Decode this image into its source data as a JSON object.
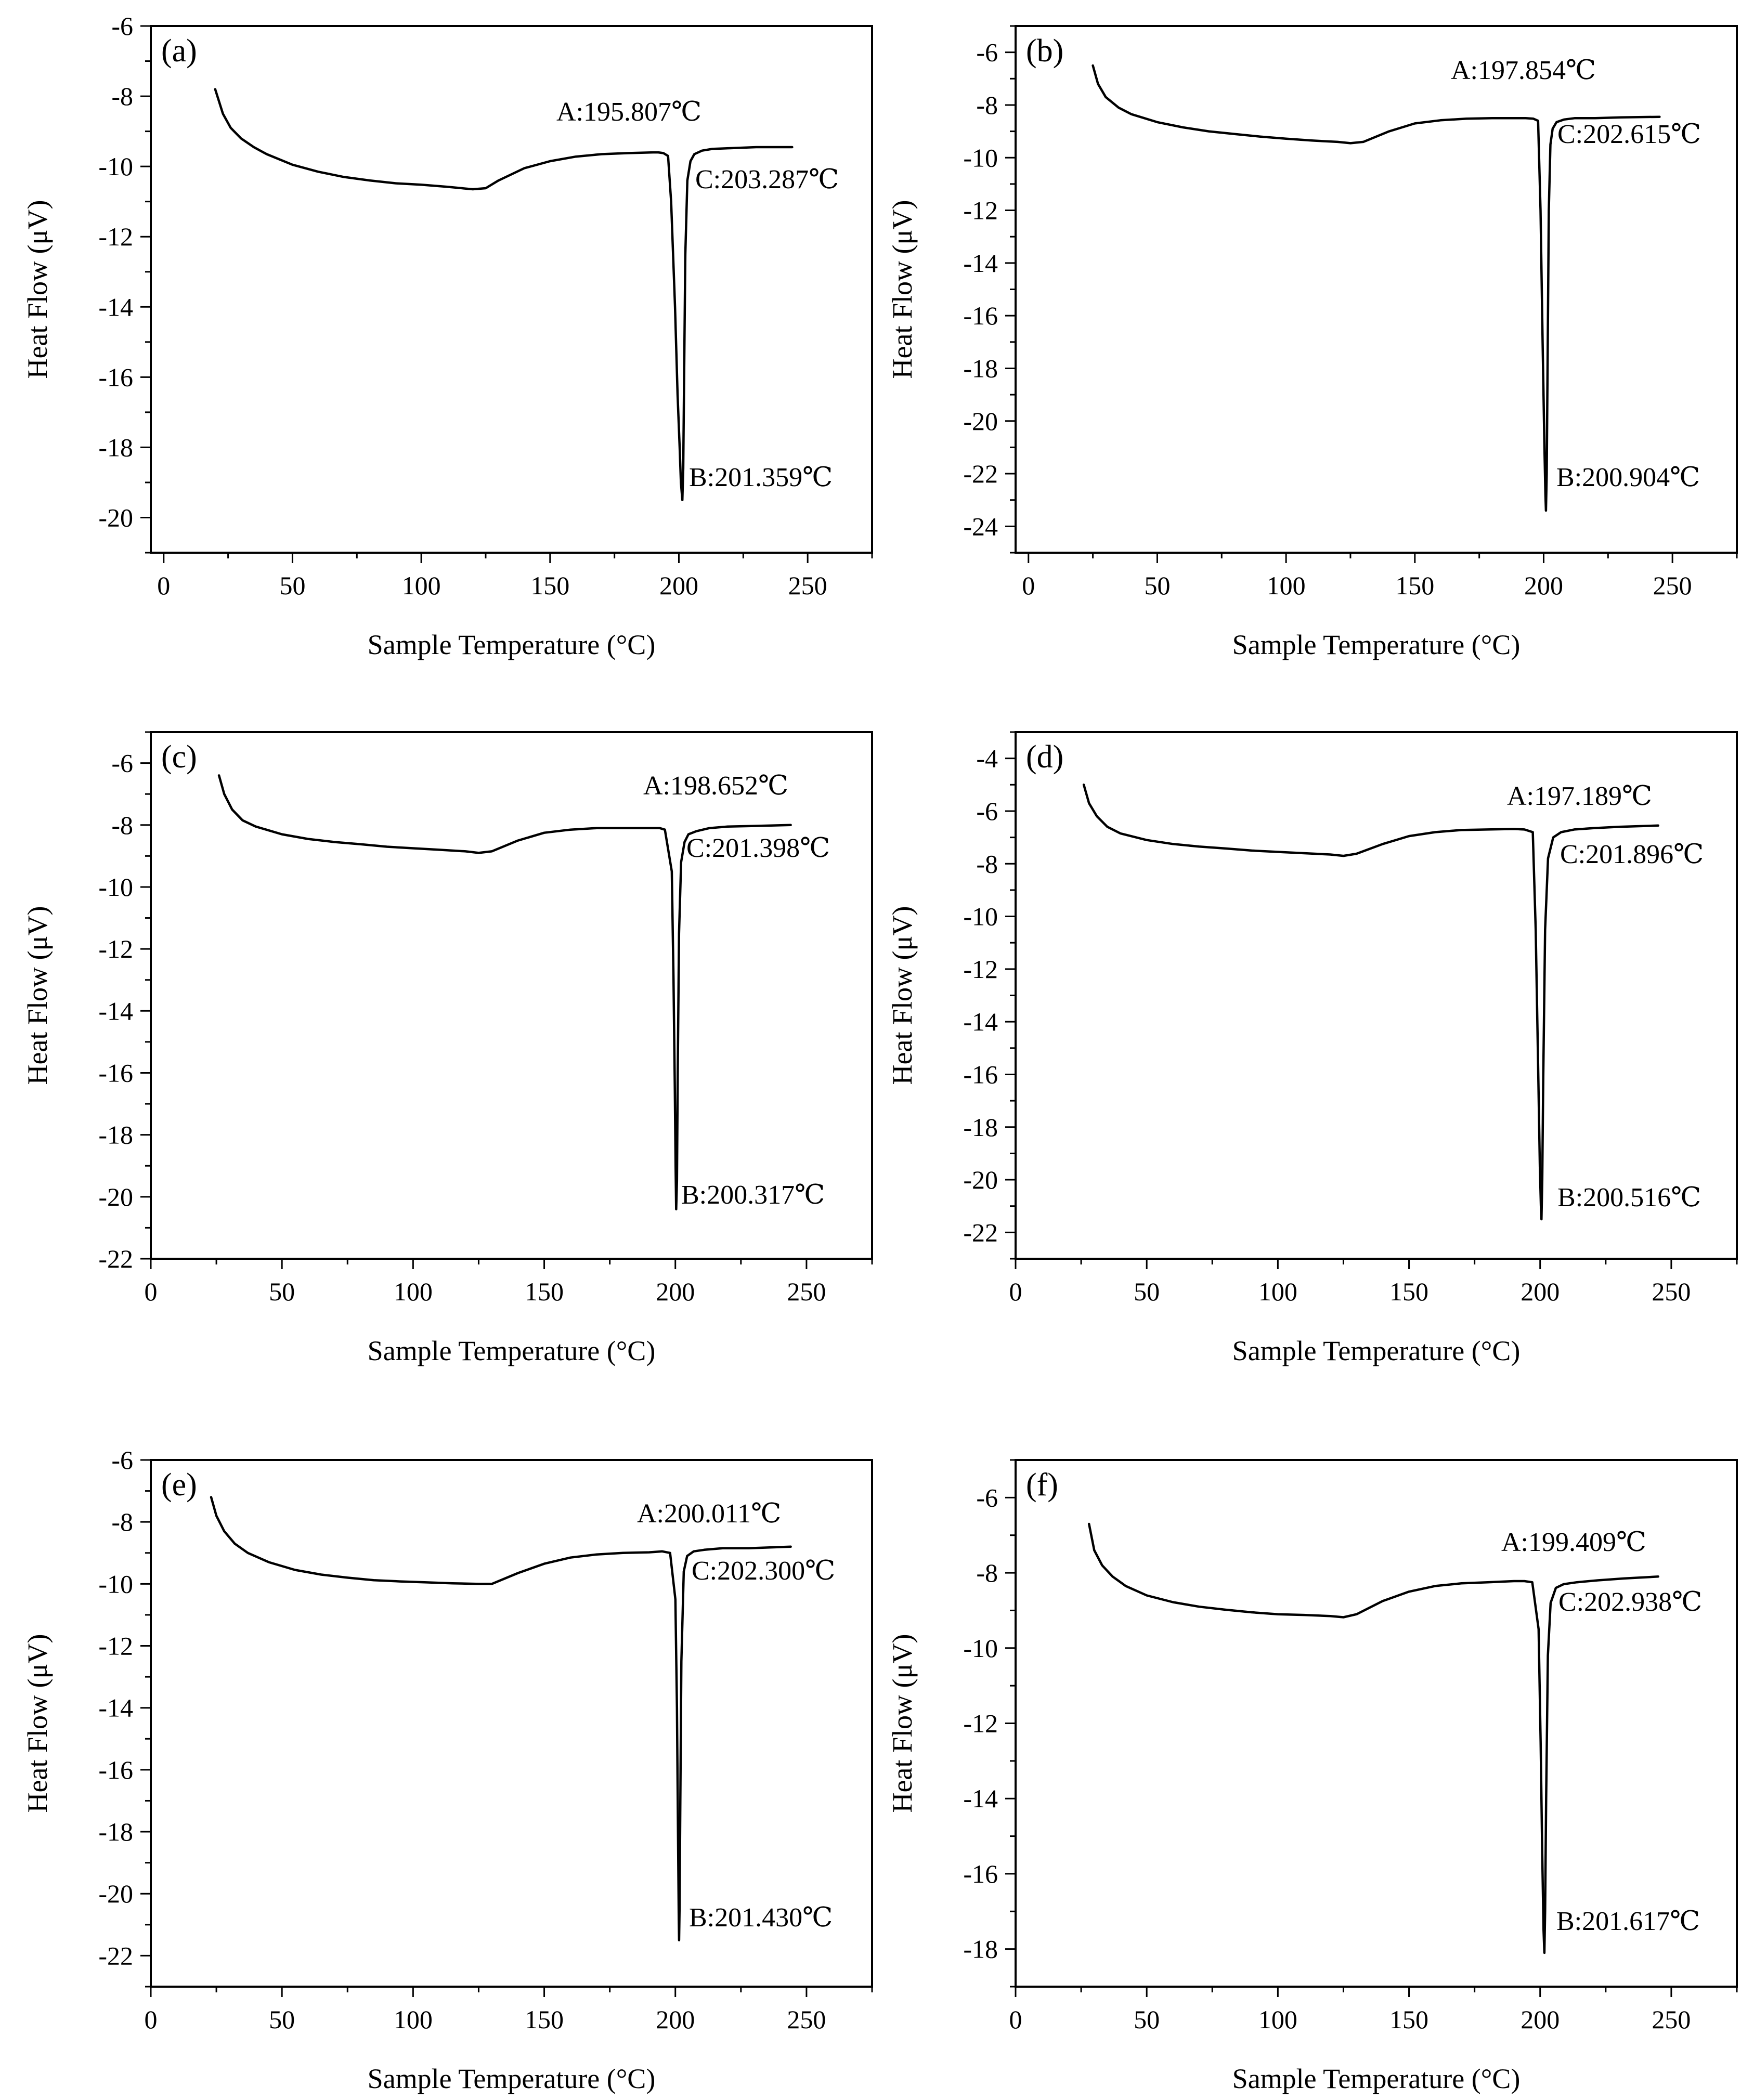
{
  "chart_data": [
    {
      "type": "line",
      "panel_label": "(a)",
      "xlabel": "Sample Temperature (°C)",
      "ylabel": "Heat Flow (μV)",
      "xlim": [
        -5,
        275
      ],
      "ylim": [
        -21,
        -6
      ],
      "xticks": [
        0,
        50,
        100,
        150,
        200,
        250
      ],
      "yticks": [
        -6,
        -8,
        -10,
        -12,
        -14,
        -16,
        -18,
        -20
      ],
      "series": [
        {
          "name": "DSC curve",
          "x": [
            20,
            23,
            26,
            30,
            35,
            40,
            50,
            60,
            70,
            80,
            90,
            100,
            110,
            120,
            125,
            130,
            140,
            150,
            160,
            170,
            180,
            190,
            192,
            194,
            195.8,
            197,
            198.5,
            199.5,
            200.3,
            200.8,
            201.36,
            201.7,
            202.1,
            202.5,
            203.29,
            204.5,
            206,
            209,
            213,
            220,
            230,
            244
          ],
          "y": [
            -7.8,
            -8.5,
            -8.9,
            -9.2,
            -9.45,
            -9.65,
            -9.95,
            -10.15,
            -10.3,
            -10.4,
            -10.48,
            -10.52,
            -10.58,
            -10.65,
            -10.62,
            -10.4,
            -10.05,
            -9.85,
            -9.72,
            -9.65,
            -9.62,
            -9.6,
            -9.6,
            -9.62,
            -9.7,
            -11.0,
            -14.0,
            -16.5,
            -18.0,
            -19.0,
            -19.5,
            -18.6,
            -15.5,
            -12.5,
            -10.4,
            -9.85,
            -9.65,
            -9.55,
            -9.5,
            -9.48,
            -9.45,
            -9.45
          ]
        }
      ],
      "annotations": [
        {
          "text": "A:195.807℃",
          "x": 195.807
        },
        {
          "text": "B:201.359℃",
          "x": 201.359
        },
        {
          "text": "C:203.287℃",
          "x": 203.287
        }
      ]
    },
    {
      "type": "line",
      "panel_label": "(b)",
      "xlabel": "Sample Temperature (°C)",
      "ylabel": "Heat Flow (μV)",
      "xlim": [
        -5,
        275
      ],
      "ylim": [
        -25,
        -5
      ],
      "xticks": [
        0,
        50,
        100,
        150,
        200,
        250
      ],
      "yticks": [
        -6,
        -8,
        -10,
        -12,
        -14,
        -16,
        -18,
        -20,
        -22,
        -24
      ],
      "series": [
        {
          "name": "DSC curve",
          "x": [
            25,
            27,
            30,
            35,
            40,
            50,
            60,
            70,
            80,
            90,
            100,
            110,
            120,
            125,
            130,
            140,
            150,
            160,
            170,
            180,
            190,
            193,
            196,
            197.85,
            198.8,
            199.6,
            200.3,
            200.7,
            200.9,
            201.2,
            201.6,
            202.0,
            202.62,
            203.5,
            205,
            208,
            212,
            220,
            230,
            245
          ],
          "y": [
            -6.5,
            -7.2,
            -7.7,
            -8.1,
            -8.35,
            -8.65,
            -8.85,
            -9.0,
            -9.1,
            -9.2,
            -9.28,
            -9.35,
            -9.4,
            -9.45,
            -9.4,
            -9.0,
            -8.7,
            -8.58,
            -8.52,
            -8.5,
            -8.5,
            -8.5,
            -8.52,
            -8.6,
            -12.0,
            -17.0,
            -21.0,
            -22.8,
            -23.4,
            -22.0,
            -17.0,
            -12.0,
            -9.5,
            -8.9,
            -8.65,
            -8.55,
            -8.5,
            -8.5,
            -8.47,
            -8.45
          ]
        }
      ],
      "annotations": [
        {
          "text": "A:197.854℃",
          "x": 197.854
        },
        {
          "text": "B:200.904℃",
          "x": 200.904
        },
        {
          "text": "C:202.615℃",
          "x": 202.615
        }
      ]
    },
    {
      "type": "line",
      "panel_label": "(c)",
      "xlabel": "Sample Temperature (°C)",
      "ylabel": "Heat Flow (μV)",
      "xlim": [
        0,
        275
      ],
      "ylim": [
        -22,
        -5
      ],
      "xticks": [
        0,
        50,
        100,
        150,
        200,
        250
      ],
      "yticks": [
        -6,
        -8,
        -10,
        -12,
        -14,
        -16,
        -18,
        -20,
        -22
      ],
      "series": [
        {
          "name": "DSC curve",
          "x": [
            26,
            28,
            31,
            35,
            40,
            50,
            60,
            70,
            80,
            90,
            100,
            110,
            120,
            125,
            130,
            140,
            150,
            160,
            170,
            180,
            190,
            194,
            196,
            198.65,
            199.3,
            199.8,
            200.1,
            200.32,
            200.6,
            200.9,
            201.4,
            202.2,
            203.5,
            205,
            208,
            213,
            220,
            230,
            244
          ],
          "y": [
            -6.4,
            -7.0,
            -7.5,
            -7.85,
            -8.05,
            -8.3,
            -8.45,
            -8.55,
            -8.62,
            -8.7,
            -8.75,
            -8.8,
            -8.85,
            -8.9,
            -8.85,
            -8.5,
            -8.25,
            -8.15,
            -8.1,
            -8.1,
            -8.1,
            -8.1,
            -8.15,
            -9.5,
            -13.0,
            -16.5,
            -19.0,
            -20.4,
            -19.5,
            -16.0,
            -11.5,
            -9.2,
            -8.55,
            -8.3,
            -8.2,
            -8.1,
            -8.05,
            -8.03,
            -8.0
          ]
        }
      ],
      "annotations": [
        {
          "text": "A:198.652℃",
          "x": 198.652
        },
        {
          "text": "B:200.317℃",
          "x": 200.317
        },
        {
          "text": "C:201.398℃",
          "x": 201.398
        }
      ]
    },
    {
      "type": "line",
      "panel_label": "(d)",
      "xlabel": "Sample Temperature (°C)",
      "ylabel": "Heat Flow (μV)",
      "xlim": [
        0,
        275
      ],
      "ylim": [
        -23,
        -3
      ],
      "xticks": [
        0,
        50,
        100,
        150,
        200,
        250
      ],
      "yticks": [
        -4,
        -6,
        -8,
        -10,
        -12,
        -14,
        -16,
        -18,
        -20,
        -22
      ],
      "series": [
        {
          "name": "DSC curve",
          "x": [
            26,
            28,
            31,
            35,
            40,
            50,
            60,
            70,
            80,
            90,
            100,
            110,
            120,
            125,
            130,
            140,
            150,
            160,
            170,
            180,
            190,
            194,
            197.19,
            198.3,
            199.2,
            199.9,
            200.3,
            200.52,
            200.8,
            201.2,
            201.9,
            203,
            205,
            208,
            213,
            220,
            230,
            245
          ],
          "y": [
            -5.0,
            -5.7,
            -6.2,
            -6.6,
            -6.85,
            -7.1,
            -7.25,
            -7.35,
            -7.42,
            -7.5,
            -7.55,
            -7.6,
            -7.65,
            -7.7,
            -7.62,
            -7.25,
            -6.95,
            -6.8,
            -6.72,
            -6.7,
            -6.68,
            -6.7,
            -6.8,
            -10.5,
            -15.5,
            -19.5,
            -21.0,
            -21.5,
            -20.0,
            -16.0,
            -10.5,
            -7.8,
            -7.0,
            -6.8,
            -6.7,
            -6.65,
            -6.6,
            -6.55
          ]
        }
      ],
      "annotations": [
        {
          "text": "A:197.189℃",
          "x": 197.189
        },
        {
          "text": "B:200.516℃",
          "x": 200.516
        },
        {
          "text": "C:201.896℃",
          "x": 201.896
        }
      ]
    },
    {
      "type": "line",
      "panel_label": "(e)",
      "xlabel": "Sample Temperature (°C)",
      "ylabel": "Heat Flow (μV)",
      "xlim": [
        0,
        275
      ],
      "ylim": [
        -23,
        -6
      ],
      "xticks": [
        0,
        50,
        100,
        150,
        200,
        250
      ],
      "yticks": [
        -6,
        -8,
        -10,
        -12,
        -14,
        -16,
        -18,
        -20,
        -22
      ],
      "series": [
        {
          "name": "DSC curve",
          "x": [
            23,
            25,
            28,
            32,
            37,
            45,
            55,
            65,
            75,
            85,
            95,
            105,
            115,
            125,
            130,
            140,
            150,
            160,
            170,
            180,
            190,
            195,
            198,
            200.01,
            200.6,
            201.0,
            201.3,
            201.43,
            201.6,
            201.9,
            202.3,
            203.2,
            204.5,
            207,
            211,
            218,
            228,
            244
          ],
          "y": [
            -7.2,
            -7.8,
            -8.3,
            -8.7,
            -9.0,
            -9.3,
            -9.55,
            -9.7,
            -9.8,
            -9.88,
            -9.92,
            -9.95,
            -9.98,
            -10.0,
            -10.0,
            -9.65,
            -9.35,
            -9.15,
            -9.05,
            -9.0,
            -8.98,
            -8.95,
            -9.0,
            -10.5,
            -14.0,
            -18.0,
            -20.8,
            -21.5,
            -20.5,
            -17.0,
            -12.5,
            -9.6,
            -9.1,
            -8.95,
            -8.9,
            -8.85,
            -8.85,
            -8.8
          ]
        }
      ],
      "annotations": [
        {
          "text": "A:200.011℃",
          "x": 200.011
        },
        {
          "text": "B:201.430℃",
          "x": 201.43
        },
        {
          "text": "C:202.300℃",
          "x": 202.3
        }
      ]
    },
    {
      "type": "line",
      "panel_label": "(f)",
      "xlabel": "Sample Temperature (°C)",
      "ylabel": "Heat Flow (μV)",
      "xlim": [
        0,
        275
      ],
      "ylim": [
        -19,
        -5
      ],
      "xticks": [
        0,
        50,
        100,
        150,
        200,
        250
      ],
      "yticks": [
        -6,
        -8,
        -10,
        -12,
        -14,
        -16,
        -18
      ],
      "series": [
        {
          "name": "DSC curve",
          "x": [
            28,
            30,
            33,
            37,
            42,
            50,
            60,
            70,
            80,
            90,
            100,
            110,
            120,
            125,
            130,
            140,
            150,
            160,
            170,
            180,
            190,
            194,
            197,
            199.41,
            200.2,
            200.8,
            201.3,
            201.62,
            201.9,
            202.3,
            202.94,
            204,
            206,
            209,
            214,
            222,
            232,
            245
          ],
          "y": [
            -6.7,
            -7.4,
            -7.8,
            -8.1,
            -8.35,
            -8.6,
            -8.78,
            -8.9,
            -8.98,
            -9.05,
            -9.1,
            -9.12,
            -9.15,
            -9.18,
            -9.1,
            -8.75,
            -8.5,
            -8.35,
            -8.28,
            -8.25,
            -8.22,
            -8.22,
            -8.25,
            -9.5,
            -12.5,
            -15.5,
            -17.5,
            -18.1,
            -17.0,
            -14.0,
            -10.2,
            -8.8,
            -8.4,
            -8.3,
            -8.25,
            -8.2,
            -8.15,
            -8.1
          ]
        }
      ],
      "annotations": [
        {
          "text": "A:199.409℃",
          "x": 199.409
        },
        {
          "text": "B:201.617℃",
          "x": 201.617
        },
        {
          "text": "C:202.938℃",
          "x": 202.938
        }
      ]
    }
  ]
}
